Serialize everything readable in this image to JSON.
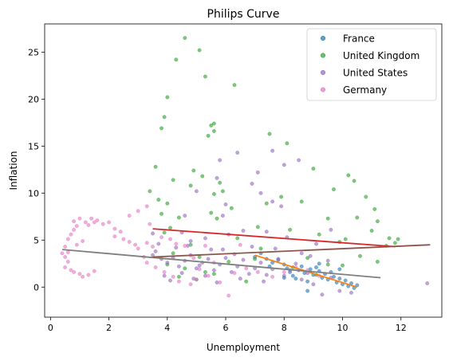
{
  "chart_data": {
    "type": "scatter",
    "title": "Philips Curve",
    "xlabel": "Unemployment",
    "ylabel": "Inflation",
    "xlim": [
      -0.2,
      13.4
    ],
    "ylim": [
      -3.2,
      28
    ],
    "xticks": [
      0,
      2,
      4,
      6,
      8,
      10,
      12
    ],
    "yticks": [
      0,
      5,
      10,
      15,
      20,
      25
    ],
    "grid": false,
    "legend_position": "top-right",
    "series": [
      {
        "name": "France",
        "color": "#1f77b4",
        "points": [
          [
            7.0,
            3.2
          ],
          [
            7.2,
            3.6
          ],
          [
            7.4,
            3.0
          ],
          [
            7.6,
            2.6
          ],
          [
            7.8,
            2.9
          ],
          [
            8.0,
            2.4
          ],
          [
            8.1,
            2.0
          ],
          [
            8.2,
            1.6
          ],
          [
            8.3,
            1.2
          ],
          [
            8.4,
            0.9
          ],
          [
            8.5,
            1.8
          ],
          [
            8.6,
            2.2
          ],
          [
            8.7,
            1.5
          ],
          [
            8.8,
            0.6
          ],
          [
            8.9,
            1.9
          ],
          [
            9.0,
            1.3
          ],
          [
            9.1,
            2.1
          ],
          [
            9.2,
            1.7
          ],
          [
            9.3,
            1.0
          ],
          [
            9.4,
            1.4
          ],
          [
            9.5,
            0.8
          ],
          [
            9.6,
            1.6
          ],
          [
            9.7,
            1.1
          ],
          [
            9.8,
            0.5
          ],
          [
            9.9,
            0.9
          ],
          [
            10.0,
            0.3
          ],
          [
            10.1,
            0.7
          ],
          [
            10.2,
            0.1
          ],
          [
            10.3,
            0.4
          ],
          [
            10.4,
            -0.1
          ],
          [
            8.8,
            -0.4
          ],
          [
            9.2,
            2.5
          ],
          [
            8.0,
            1.0
          ],
          [
            7.5,
            2.2
          ],
          [
            10.5,
            0.2
          ],
          [
            9.9,
            1.9
          ]
        ],
        "trend": [
          [
            7.0,
            3.4
          ],
          [
            10.5,
            0.0
          ]
        ]
      },
      {
        "name": "United Kingdom",
        "color": "#2ca02c",
        "points": [
          [
            4.6,
            26.5
          ],
          [
            5.1,
            25.2
          ],
          [
            4.3,
            24.2
          ],
          [
            5.3,
            22.4
          ],
          [
            6.3,
            21.5
          ],
          [
            4.0,
            20.2
          ],
          [
            5.5,
            17.2
          ],
          [
            5.6,
            17.4
          ],
          [
            3.9,
            18.1
          ],
          [
            3.8,
            16.9
          ],
          [
            5.4,
            16.1
          ],
          [
            5.6,
            16.6
          ],
          [
            7.5,
            16.3
          ],
          [
            8.1,
            15.3
          ],
          [
            3.6,
            12.8
          ],
          [
            4.9,
            12.4
          ],
          [
            5.2,
            11.8
          ],
          [
            5.8,
            11.1
          ],
          [
            9.0,
            12.6
          ],
          [
            10.2,
            11.9
          ],
          [
            10.4,
            11.3
          ],
          [
            4.2,
            11.4
          ],
          [
            4.8,
            10.8
          ],
          [
            3.4,
            10.2
          ],
          [
            5.6,
            9.9
          ],
          [
            5.9,
            10.2
          ],
          [
            7.9,
            9.6
          ],
          [
            8.6,
            9.1
          ],
          [
            9.7,
            10.4
          ],
          [
            10.8,
            9.6
          ],
          [
            11.1,
            8.3
          ],
          [
            3.7,
            9.3
          ],
          [
            4.0,
            8.9
          ],
          [
            5.5,
            7.9
          ],
          [
            6.2,
            8.4
          ],
          [
            7.4,
            8.9
          ],
          [
            9.5,
            7.3
          ],
          [
            10.5,
            7.4
          ],
          [
            11.2,
            7.0
          ],
          [
            3.8,
            7.8
          ],
          [
            4.4,
            7.4
          ],
          [
            5.7,
            7.3
          ],
          [
            7.1,
            6.4
          ],
          [
            8.2,
            6.1
          ],
          [
            9.2,
            5.6
          ],
          [
            10.1,
            5.1
          ],
          [
            11.0,
            6.0
          ],
          [
            11.6,
            5.2
          ],
          [
            11.8,
            4.7
          ],
          [
            11.9,
            5.1
          ],
          [
            3.9,
            5.8
          ],
          [
            4.1,
            6.3
          ],
          [
            4.8,
            4.5
          ],
          [
            6.4,
            5.2
          ],
          [
            7.2,
            4.1
          ],
          [
            8.8,
            3.1
          ],
          [
            9.5,
            2.4
          ],
          [
            10.6,
            3.3
          ],
          [
            11.2,
            2.7
          ],
          [
            4.0,
            2.4
          ],
          [
            4.6,
            2.0
          ],
          [
            5.3,
            1.6
          ],
          [
            6.1,
            2.7
          ],
          [
            7.0,
            3.0
          ],
          [
            8.3,
            2.1
          ],
          [
            9.1,
            1.3
          ],
          [
            10.0,
            2.3
          ],
          [
            4.4,
            1.1
          ],
          [
            5.0,
            0.8
          ],
          [
            5.6,
            1.4
          ],
          [
            6.7,
            0.6
          ],
          [
            4.2,
            3.6
          ],
          [
            5.1,
            3.2
          ],
          [
            9.9,
            4.8
          ],
          [
            11.5,
            4.4
          ]
        ],
        "trend": [
          [
            3.5,
            6.2
          ],
          [
            11.8,
            4.3
          ]
        ]
      },
      {
        "name": "United States",
        "color": "#9467bd",
        "points": [
          [
            7.6,
            14.5
          ],
          [
            6.4,
            14.3
          ],
          [
            5.8,
            13.5
          ],
          [
            8.5,
            13.5
          ],
          [
            8.0,
            13.0
          ],
          [
            7.1,
            12.2
          ],
          [
            5.7,
            11.6
          ],
          [
            6.9,
            11.0
          ],
          [
            5.0,
            10.2
          ],
          [
            7.2,
            10.0
          ],
          [
            7.6,
            9.1
          ],
          [
            7.9,
            8.6
          ],
          [
            6.0,
            8.8
          ],
          [
            5.9,
            7.6
          ],
          [
            4.6,
            7.6
          ],
          [
            4.5,
            5.8
          ],
          [
            3.5,
            5.7
          ],
          [
            3.7,
            4.6
          ],
          [
            4.3,
            4.2
          ],
          [
            4.8,
            4.9
          ],
          [
            5.3,
            5.2
          ],
          [
            5.5,
            4.0
          ],
          [
            6.1,
            5.6
          ],
          [
            6.6,
            6.0
          ],
          [
            7.4,
            5.9
          ],
          [
            8.1,
            5.3
          ],
          [
            9.1,
            4.6
          ],
          [
            9.6,
            6.1
          ],
          [
            3.5,
            3.4
          ],
          [
            3.8,
            3.0
          ],
          [
            4.0,
            2.6
          ],
          [
            4.2,
            3.1
          ],
          [
            4.4,
            2.2
          ],
          [
            4.6,
            2.8
          ],
          [
            4.8,
            3.4
          ],
          [
            5.0,
            2.0
          ],
          [
            5.2,
            2.6
          ],
          [
            5.4,
            3.0
          ],
          [
            5.6,
            1.8
          ],
          [
            5.8,
            2.4
          ],
          [
            6.0,
            3.1
          ],
          [
            6.2,
            1.6
          ],
          [
            6.4,
            2.2
          ],
          [
            6.6,
            2.9
          ],
          [
            6.8,
            1.4
          ],
          [
            7.0,
            2.0
          ],
          [
            7.2,
            2.6
          ],
          [
            7.4,
            1.3
          ],
          [
            7.6,
            1.9
          ],
          [
            7.8,
            3.0
          ],
          [
            8.0,
            1.2
          ],
          [
            8.2,
            1.8
          ],
          [
            8.4,
            2.5
          ],
          [
            8.6,
            0.8
          ],
          [
            8.8,
            1.5
          ],
          [
            9.0,
            0.3
          ],
          [
            9.3,
            -0.8
          ],
          [
            9.6,
            1.0
          ],
          [
            9.9,
            -0.4
          ],
          [
            10.3,
            -0.6
          ],
          [
            9.5,
            2.8
          ],
          [
            8.9,
            3.3
          ],
          [
            3.9,
            1.2
          ],
          [
            4.1,
            0.7
          ],
          [
            4.5,
            1.5
          ],
          [
            4.9,
            0.9
          ],
          [
            5.3,
            1.2
          ],
          [
            5.7,
            0.5
          ],
          [
            6.5,
            0.9
          ],
          [
            7.3,
            0.6
          ],
          [
            3.6,
            3.8
          ],
          [
            4.7,
            4.4
          ],
          [
            5.9,
            4.0
          ],
          [
            6.9,
            4.3
          ],
          [
            7.7,
            4.1
          ],
          [
            8.6,
            3.6
          ],
          [
            5.1,
            2.3
          ],
          [
            6.3,
            3.5
          ],
          [
            12.9,
            0.4
          ]
        ],
        "trend": [
          [
            0.4,
            4.0
          ],
          [
            11.3,
            1.0
          ]
        ]
      },
      {
        "name": "Germany",
        "color": "#e377c2",
        "points": [
          [
            0.5,
            4.3
          ],
          [
            0.6,
            3.7
          ],
          [
            0.5,
            3.2
          ],
          [
            0.6,
            2.7
          ],
          [
            0.5,
            2.1
          ],
          [
            0.7,
            1.8
          ],
          [
            0.8,
            1.6
          ],
          [
            0.6,
            5.1
          ],
          [
            0.7,
            5.6
          ],
          [
            0.8,
            6.1
          ],
          [
            0.9,
            6.5
          ],
          [
            0.8,
            7.0
          ],
          [
            1.0,
            7.3
          ],
          [
            1.2,
            6.9
          ],
          [
            1.3,
            6.6
          ],
          [
            1.4,
            7.3
          ],
          [
            1.5,
            6.9
          ],
          [
            1.6,
            7.1
          ],
          [
            1.8,
            6.7
          ],
          [
            2.0,
            6.9
          ],
          [
            1.0,
            1.4
          ],
          [
            1.1,
            1.1
          ],
          [
            1.3,
            1.3
          ],
          [
            1.5,
            1.7
          ],
          [
            0.9,
            4.5
          ],
          [
            1.1,
            4.9
          ],
          [
            2.2,
            6.2
          ],
          [
            2.4,
            5.9
          ],
          [
            2.5,
            5.1
          ],
          [
            2.7,
            4.8
          ],
          [
            2.9,
            4.5
          ],
          [
            3.0,
            4.1
          ],
          [
            3.3,
            4.7
          ],
          [
            3.5,
            4.3
          ],
          [
            3.8,
            5.3
          ],
          [
            4.1,
            5.1
          ],
          [
            4.3,
            4.6
          ],
          [
            4.6,
            4.4
          ],
          [
            5.3,
            4.4
          ],
          [
            6.5,
            4.5
          ],
          [
            3.2,
            3.2
          ],
          [
            3.6,
            2.1
          ],
          [
            3.9,
            1.6
          ],
          [
            4.2,
            1.1
          ],
          [
            4.4,
            0.6
          ],
          [
            4.8,
            0.3
          ],
          [
            5.0,
            0.8
          ],
          [
            5.4,
            1.2
          ],
          [
            5.8,
            0.5
          ],
          [
            6.3,
            1.5
          ],
          [
            6.7,
            2.0
          ],
          [
            7.1,
            1.6
          ],
          [
            7.6,
            1.1
          ],
          [
            8.0,
            1.6
          ],
          [
            8.4,
            2.1
          ],
          [
            8.8,
            1.8
          ],
          [
            9.2,
            1.2
          ],
          [
            3.3,
            2.6
          ],
          [
            3.0,
            8.1
          ],
          [
            3.3,
            8.6
          ],
          [
            2.7,
            7.6
          ],
          [
            5.1,
            1.9
          ],
          [
            6.1,
            -0.9
          ],
          [
            5.6,
            2.6
          ],
          [
            4.9,
            3.1
          ],
          [
            2.2,
            5.4
          ],
          [
            3.4,
            6.7
          ],
          [
            0.4,
            3.6
          ]
        ],
        "trend": [
          [
            3.5,
            3.2
          ],
          [
            13.0,
            4.5
          ]
        ]
      }
    ]
  }
}
